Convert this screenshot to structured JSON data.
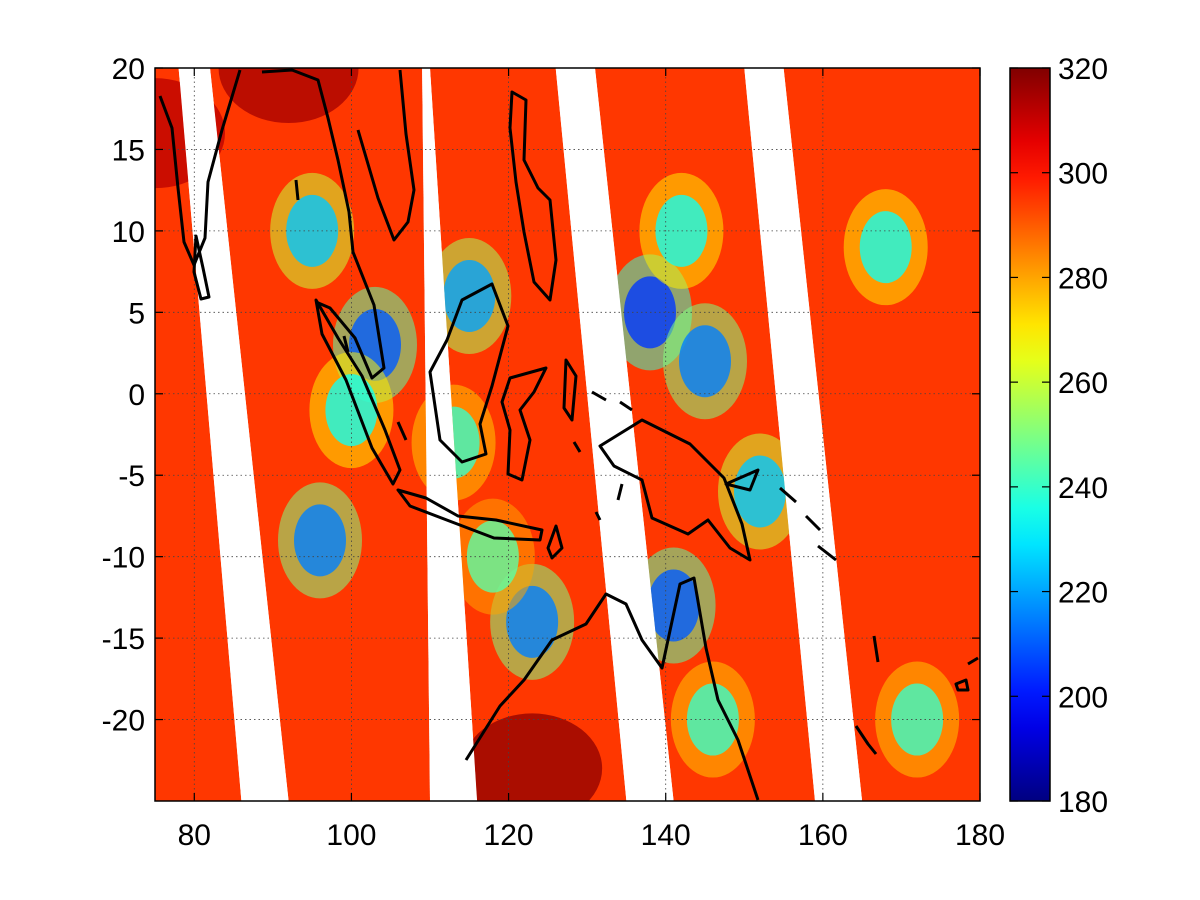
{
  "chart_data": {
    "type": "heatmap",
    "title": "",
    "xlabel": "",
    "ylabel": "",
    "xlim": [
      75,
      180
    ],
    "ylim": [
      -25,
      20
    ],
    "xticks": [
      80,
      100,
      120,
      140,
      160,
      180
    ],
    "xtick_labels": [
      "80",
      "100",
      "120",
      "140",
      "160",
      "180"
    ],
    "yticks": [
      20,
      15,
      10,
      5,
      0,
      -5,
      -10,
      -15,
      -20
    ],
    "ytick_labels": [
      "20",
      "15",
      "10",
      "5",
      "0",
      "-5",
      "-10",
      "-15",
      "-20"
    ],
    "grid": true,
    "colormap": "jet",
    "colorbar": {
      "range": [
        180,
        320
      ],
      "ticks": [
        180,
        200,
        220,
        240,
        260,
        280,
        300,
        320
      ],
      "tick_labels": [
        "180",
        "200",
        "220",
        "240",
        "260",
        "280",
        "300",
        "320"
      ]
    },
    "typical_value": 295,
    "swaths": [
      {
        "lon_north": [
          74,
          78
        ],
        "lon_south": [
          75,
          86
        ]
      },
      {
        "lon_north": [
          82,
          109
        ],
        "lon_south": [
          92,
          110
        ]
      },
      {
        "lon_north": [
          110,
          126
        ],
        "lon_south": [
          116,
          135
        ]
      },
      {
        "lon_north": [
          131,
          150
        ],
        "lon_south": [
          141,
          159
        ]
      },
      {
        "lon_north": [
          155,
          180
        ],
        "lon_south": [
          165,
          180
        ]
      }
    ],
    "cold_regions": [
      {
        "lon": 95,
        "lat": 10,
        "value": 225
      },
      {
        "lon": 103,
        "lat": 3,
        "value": 210
      },
      {
        "lon": 100,
        "lat": -1,
        "value": 235
      },
      {
        "lon": 96,
        "lat": -9,
        "value": 215
      },
      {
        "lon": 113,
        "lat": -3,
        "value": 240
      },
      {
        "lon": 115,
        "lat": 6,
        "value": 220
      },
      {
        "lon": 123,
        "lat": -14,
        "value": 215
      },
      {
        "lon": 118,
        "lat": -10,
        "value": 245
      },
      {
        "lon": 138,
        "lat": 5,
        "value": 205
      },
      {
        "lon": 145,
        "lat": 2,
        "value": 215
      },
      {
        "lon": 142,
        "lat": 10,
        "value": 235
      },
      {
        "lon": 141,
        "lat": -13,
        "value": 210
      },
      {
        "lon": 146,
        "lat": -20,
        "value": 240
      },
      {
        "lon": 152,
        "lat": -6,
        "value": 225
      },
      {
        "lon": 168,
        "lat": 9,
        "value": 235
      },
      {
        "lon": 172,
        "lat": -20,
        "value": 240
      }
    ],
    "warm_regions": [
      {
        "lon": 123,
        "lat": -23,
        "value": 318
      },
      {
        "lon": 92,
        "lat": 20,
        "value": 315
      },
      {
        "lon": 75,
        "lat": 16,
        "value": 312
      }
    ]
  }
}
